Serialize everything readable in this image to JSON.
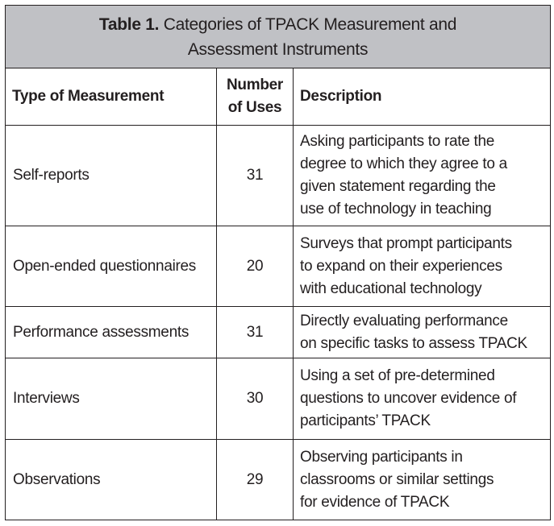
{
  "table": {
    "label": "Table 1.",
    "title_line1": "Categories of TPACK Measurement and",
    "title_line2": "Assessment Instruments",
    "headers": {
      "type": "Type of Measurement",
      "uses_line1": "Number",
      "uses_line2": "of Uses",
      "description": "Description"
    },
    "rows": [
      {
        "type": "Self-reports",
        "uses": "31",
        "description": [
          "Asking participants to rate the",
          "degree to which they agree to a",
          "given statement regarding the",
          "use of technology in teaching"
        ]
      },
      {
        "type": "Open-ended questionnaires",
        "uses": "20",
        "description": [
          "Surveys that prompt participants",
          "to expand on their experiences",
          "with educational technology"
        ]
      },
      {
        "type": "Performance assessments",
        "uses": "31",
        "description": [
          "Directly evaluating performance",
          "on specific tasks to assess TPACK"
        ]
      },
      {
        "type": "Interviews",
        "uses": "30",
        "description": [
          "Using a set of pre-determined",
          "questions to uncover evidence of",
          "participants’ TPACK"
        ]
      },
      {
        "type": "Observations",
        "uses": "29",
        "description": [
          "Observing participants in",
          "classrooms or similar settings",
          "for evidence of TPACK"
        ]
      }
    ]
  }
}
